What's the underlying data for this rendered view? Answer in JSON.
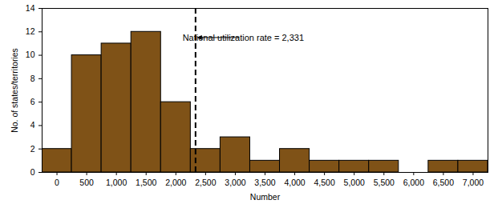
{
  "chart_data": {
    "type": "histogram",
    "bins": [
      -250,
      250,
      750,
      1250,
      1750,
      2250,
      2750,
      3250,
      3750,
      4250,
      4750,
      5250,
      5750,
      6250,
      6750,
      7250
    ],
    "counts": [
      2,
      10,
      11,
      12,
      6,
      2,
      3,
      1,
      2,
      1,
      1,
      1,
      0,
      1,
      1
    ],
    "color": "#7f5217",
    "x_label": "Number",
    "y_label": "No. of states/territories",
    "xlim": [
      -250,
      7250
    ],
    "xticks": [
      0,
      500,
      {
        "value": 1000,
        "label": "1,000"
      },
      {
        "value": 1500,
        "label": "1,500"
      },
      {
        "value": 2000,
        "label": "2,000"
      },
      {
        "value": 2500,
        "label": "2,500"
      },
      {
        "value": 3000,
        "label": "3,000"
      },
      {
        "value": 3500,
        "label": "3,500"
      },
      {
        "value": 4000,
        "label": "4,000"
      },
      {
        "value": 4500,
        "label": "4,500"
      },
      {
        "value": 5000,
        "label": "5,000"
      },
      {
        "value": 5500,
        "label": "5,500"
      },
      {
        "value": 6000,
        "label": "6,000"
      },
      {
        "value": 6500,
        "label": "6,500"
      },
      {
        "value": 7000,
        "label": "7,000"
      }
    ],
    "ylim": [
      0,
      14
    ],
    "yticks": [
      0,
      2,
      4,
      6,
      8,
      10,
      12,
      14
    ],
    "reference_line": {
      "value": 2331,
      "label": "National utilization rate = 2,331"
    }
  }
}
